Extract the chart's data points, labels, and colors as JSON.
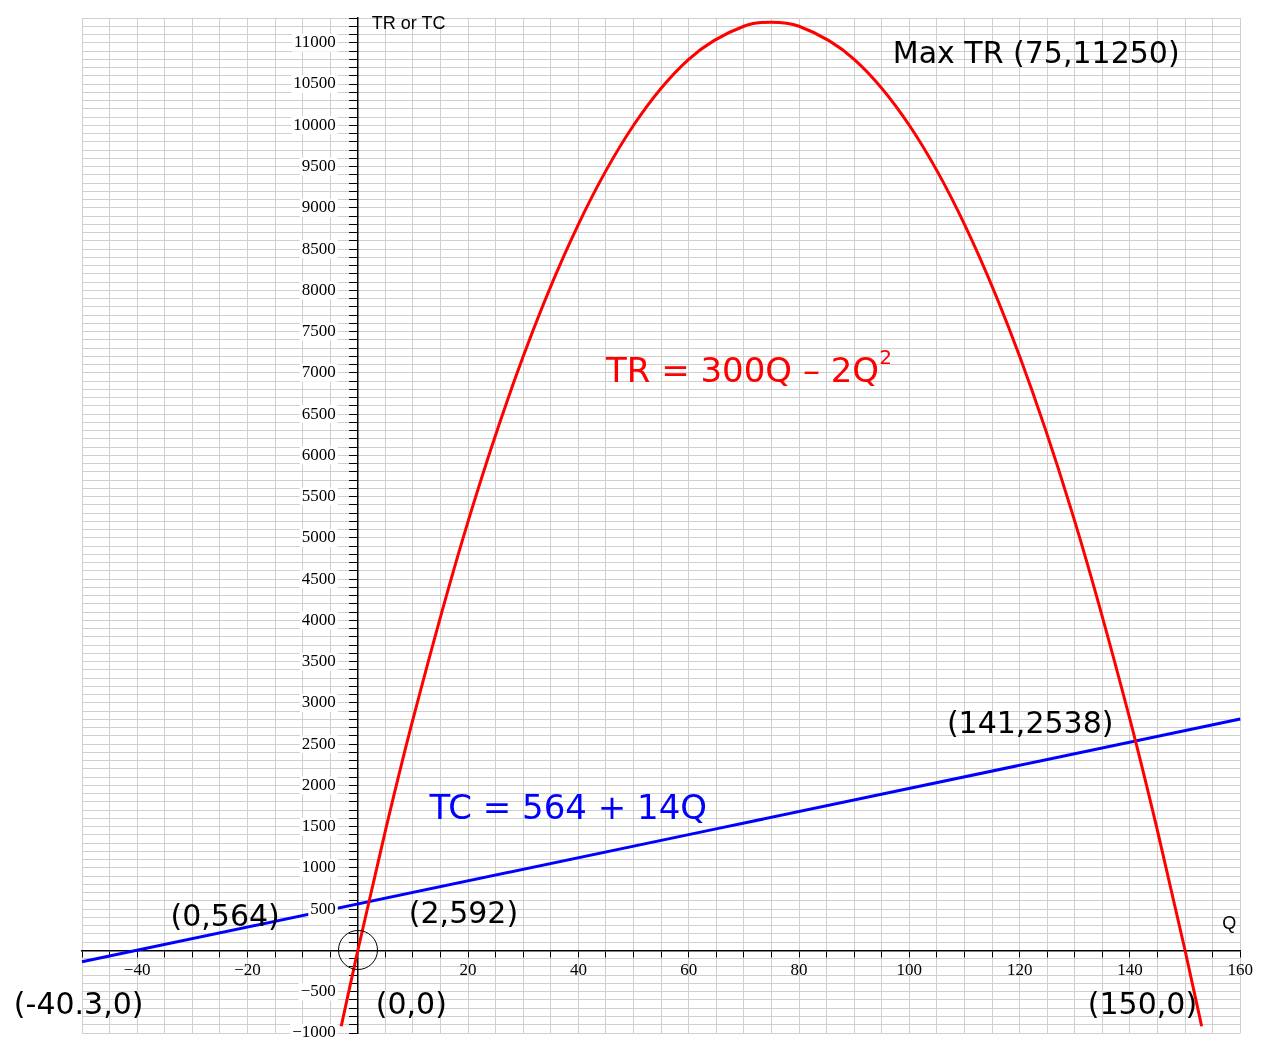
{
  "chart_data": {
    "type": "line",
    "xlabel": "Q",
    "ylabel": "TR or TC",
    "xlim": [
      -50,
      160
    ],
    "ylim": [
      -1000,
      11300
    ],
    "xticks": [
      {
        "value": -50,
        "label": null
      },
      {
        "value": -45,
        "label": null
      },
      -40,
      {
        "value": -35,
        "label": null
      },
      {
        "value": -30,
        "label": null
      },
      {
        "value": -25,
        "label": null
      },
      -20,
      {
        "value": -15,
        "label": null
      },
      {
        "value": -10,
        "label": null
      },
      {
        "value": -5,
        "label": null
      },
      {
        "value": 0,
        "label": null
      },
      {
        "value": 5,
        "label": null
      },
      {
        "value": 10,
        "label": null
      },
      {
        "value": 15,
        "label": null
      },
      20,
      {
        "value": 25,
        "label": null
      },
      {
        "value": 30,
        "label": null
      },
      {
        "value": 35,
        "label": null
      },
      40,
      {
        "value": 45,
        "label": null
      },
      {
        "value": 50,
        "label": null
      },
      {
        "value": 55,
        "label": null
      },
      60,
      {
        "value": 65,
        "label": null
      },
      {
        "value": 70,
        "label": null
      },
      {
        "value": 75,
        "label": null
      },
      80,
      {
        "value": 85,
        "label": null
      },
      {
        "value": 90,
        "label": null
      },
      {
        "value": 95,
        "label": null
      },
      100,
      {
        "value": 105,
        "label": null
      },
      {
        "value": 110,
        "label": null
      },
      {
        "value": 115,
        "label": null
      },
      120,
      {
        "value": 125,
        "label": null
      },
      {
        "value": 130,
        "label": null
      },
      {
        "value": 135,
        "label": null
      },
      140,
      {
        "value": 145,
        "label": null
      },
      {
        "value": 150,
        "label": null
      },
      {
        "value": 155,
        "label": null
      },
      160
    ],
    "yticks": [
      -1000,
      {
        "value": -900,
        "label": null
      },
      {
        "value": -800,
        "label": null
      },
      {
        "value": -700,
        "label": null
      },
      {
        "value": -600,
        "label": null
      },
      -500,
      {
        "value": -400,
        "label": null
      },
      {
        "value": -300,
        "label": null
      },
      {
        "value": -200,
        "label": null
      },
      {
        "value": -100,
        "label": null
      },
      {
        "value": 0,
        "label": null
      },
      {
        "value": 100,
        "label": null
      },
      {
        "value": 200,
        "label": null
      },
      {
        "value": 300,
        "label": null
      },
      {
        "value": 400,
        "label": null
      },
      500,
      {
        "value": 600,
        "label": null
      },
      {
        "value": 700,
        "label": null
      },
      {
        "value": 800,
        "label": null
      },
      {
        "value": 900,
        "label": null
      },
      1000,
      {
        "value": 1100,
        "label": null
      },
      {
        "value": 1200,
        "label": null
      },
      {
        "value": 1300,
        "label": null
      },
      {
        "value": 1400,
        "label": null
      },
      1500,
      {
        "value": 1600,
        "label": null
      },
      {
        "value": 1700,
        "label": null
      },
      {
        "value": 1800,
        "label": null
      },
      {
        "value": 1900,
        "label": null
      },
      2000,
      {
        "value": 2100,
        "label": null
      },
      {
        "value": 2200,
        "label": null
      },
      {
        "value": 2300,
        "label": null
      },
      {
        "value": 2400,
        "label": null
      },
      2500,
      {
        "value": 2600,
        "label": null
      },
      {
        "value": 2700,
        "label": null
      },
      {
        "value": 2800,
        "label": null
      },
      {
        "value": 2900,
        "label": null
      },
      3000,
      {
        "value": 3100,
        "label": null
      },
      {
        "value": 3200,
        "label": null
      },
      {
        "value": 3300,
        "label": null
      },
      {
        "value": 3400,
        "label": null
      },
      3500,
      {
        "value": 3600,
        "label": null
      },
      {
        "value": 3700,
        "label": null
      },
      {
        "value": 3800,
        "label": null
      },
      {
        "value": 3900,
        "label": null
      },
      4000,
      {
        "value": 4100,
        "label": null
      },
      {
        "value": 4200,
        "label": null
      },
      {
        "value": 4300,
        "label": null
      },
      {
        "value": 4400,
        "label": null
      },
      4500,
      {
        "value": 4600,
        "label": null
      },
      {
        "value": 4700,
        "label": null
      },
      {
        "value": 4800,
        "label": null
      },
      {
        "value": 4900,
        "label": null
      },
      5000,
      {
        "value": 5100,
        "label": null
      },
      {
        "value": 5200,
        "label": null
      },
      {
        "value": 5300,
        "label": null
      },
      {
        "value": 5400,
        "label": null
      },
      5500,
      {
        "value": 5600,
        "label": null
      },
      {
        "value": 5700,
        "label": null
      },
      {
        "value": 5800,
        "label": null
      },
      {
        "value": 5900,
        "label": null
      },
      6000,
      {
        "value": 6100,
        "label": null
      },
      {
        "value": 6200,
        "label": null
      },
      {
        "value": 6300,
        "label": null
      },
      {
        "value": 6400,
        "label": null
      },
      6500,
      {
        "value": 6600,
        "label": null
      },
      {
        "value": 6700,
        "label": null
      },
      {
        "value": 6800,
        "label": null
      },
      {
        "value": 6900,
        "label": null
      },
      7000,
      {
        "value": 7100,
        "label": null
      },
      {
        "value": 7200,
        "label": null
      },
      {
        "value": 7300,
        "label": null
      },
      {
        "value": 7400,
        "label": null
      },
      7500,
      {
        "value": 7600,
        "label": null
      },
      {
        "value": 7700,
        "label": null
      },
      {
        "value": 7800,
        "label": null
      },
      {
        "value": 7900,
        "label": null
      },
      8000,
      {
        "value": 8100,
        "label": null
      },
      {
        "value": 8200,
        "label": null
      },
      {
        "value": 8300,
        "label": null
      },
      {
        "value": 8400,
        "label": null
      },
      8500,
      {
        "value": 8600,
        "label": null
      },
      {
        "value": 8700,
        "label": null
      },
      {
        "value": 8800,
        "label": null
      },
      {
        "value": 8900,
        "label": null
      },
      9000,
      {
        "value": 9100,
        "label": null
      },
      {
        "value": 9200,
        "label": null
      },
      {
        "value": 9300,
        "label": null
      },
      {
        "value": 9400,
        "label": null
      },
      9500,
      {
        "value": 9600,
        "label": null
      },
      {
        "value": 9700,
        "label": null
      },
      {
        "value": 9800,
        "label": null
      },
      {
        "value": 9900,
        "label": null
      },
      10000,
      {
        "value": 10100,
        "label": null
      },
      {
        "value": 10200,
        "label": null
      },
      {
        "value": 10300,
        "label": null
      },
      {
        "value": 10400,
        "label": null
      },
      10500,
      {
        "value": 10600,
        "label": null
      },
      {
        "value": 10700,
        "label": null
      },
      {
        "value": 10800,
        "label": null
      },
      {
        "value": 10900,
        "label": null
      },
      11000,
      {
        "value": 11100,
        "label": null
      },
      {
        "value": 11200,
        "label": null
      },
      {
        "value": 11300,
        "label": null
      }
    ],
    "grid": true,
    "legend": false,
    "marker": "none",
    "line_style": "solid",
    "series": [
      {
        "name": "TR = 300Q – 2Q$^{2}$",
        "color": "#ff0000",
        "x": [
          -3,
          0,
          5,
          10,
          20,
          30,
          40,
          50,
          60,
          70,
          75,
          80,
          90,
          100,
          110,
          120,
          130,
          140,
          145,
          150,
          153
        ],
        "values": [
          -918,
          0,
          1450,
          2800,
          5200,
          7200,
          8800,
          10000,
          10800,
          11200,
          11250,
          11200,
          10800,
          10000,
          8800,
          7200,
          5200,
          2800,
          1450,
          0,
          -918
        ]
      },
      {
        "name": "TC = 564 + 14Q",
        "color": "#0000ff",
        "x": [
          -50,
          160
        ],
        "values": [
          -136,
          2804
        ]
      }
    ],
    "annotations": [
      "Max TR (75,11250)",
      {
        "text": "(141,2538)",
        "x": 141,
        "y": 2538
      },
      {
        "text": "(2,592)",
        "x": 2,
        "y": 592
      },
      {
        "text": "(0,564)",
        "x": 0,
        "y": 564
      },
      {
        "text": "(0,0)",
        "x": 0,
        "y": 0
      },
      {
        "text": "(-40.3,0)",
        "x": -40.3,
        "y": 0
      },
      {
        "text": "(150,0)",
        "x": 150,
        "y": 0
      }
    ]
  }
}
